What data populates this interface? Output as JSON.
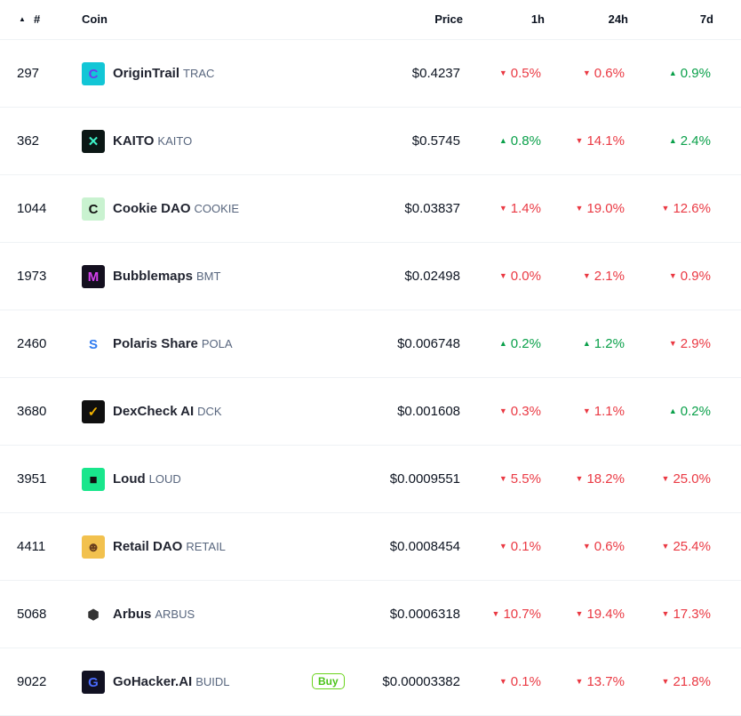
{
  "header": {
    "sort_icon": "▲",
    "rank": "#",
    "coin": "Coin",
    "price": "Price",
    "h1": "1h",
    "h24": "24h",
    "d7": "7d"
  },
  "colors": {
    "up": "#0aa04a",
    "down": "#ea3943",
    "buy": "#4cc31a"
  },
  "buy_label": "Buy",
  "coins": [
    {
      "rank": "297",
      "name": "OriginTrail",
      "symbol": "TRAC",
      "price": "$0.4237",
      "h1": {
        "dir": "down",
        "v": "0.5%"
      },
      "h24": {
        "dir": "down",
        "v": "0.6%"
      },
      "d7": {
        "dir": "up",
        "v": "0.9%"
      },
      "icon": "origintrail-logo",
      "bg": "#12c6d6",
      "fg": "#6a3df0",
      "glyph": "C"
    },
    {
      "rank": "362",
      "name": "KAITO",
      "symbol": "KAITO",
      "price": "$0.5745",
      "h1": {
        "dir": "up",
        "v": "0.8%"
      },
      "h24": {
        "dir": "down",
        "v": "14.1%"
      },
      "d7": {
        "dir": "up",
        "v": "2.4%"
      },
      "icon": "kaito-logo",
      "bg": "#0b1715",
      "fg": "#3ef2c8",
      "glyph": "✕"
    },
    {
      "rank": "1044",
      "name": "Cookie DAO",
      "symbol": "COOKIE",
      "price": "$0.03837",
      "h1": {
        "dir": "down",
        "v": "1.4%"
      },
      "h24": {
        "dir": "down",
        "v": "19.0%"
      },
      "d7": {
        "dir": "down",
        "v": "12.6%"
      },
      "icon": "cookie-dao-logo",
      "bg": "#c9f2d0",
      "fg": "#111",
      "glyph": "C"
    },
    {
      "rank": "1973",
      "name": "Bubblemaps",
      "symbol": "BMT",
      "price": "$0.02498",
      "h1": {
        "dir": "down",
        "v": "0.0%"
      },
      "h24": {
        "dir": "down",
        "v": "2.1%"
      },
      "d7": {
        "dir": "down",
        "v": "0.9%"
      },
      "icon": "bubblemaps-logo",
      "bg": "#14101f",
      "fg": "#d640f0",
      "glyph": "M"
    },
    {
      "rank": "2460",
      "name": "Polaris Share",
      "symbol": "POLA",
      "price": "$0.006748",
      "h1": {
        "dir": "up",
        "v": "0.2%"
      },
      "h24": {
        "dir": "up",
        "v": "1.2%"
      },
      "d7": {
        "dir": "down",
        "v": "2.9%"
      },
      "icon": "polaris-share-logo",
      "bg": "#ffffff",
      "fg": "#2f7bf0",
      "glyph": "S"
    },
    {
      "rank": "3680",
      "name": "DexCheck AI",
      "symbol": "DCK",
      "price": "$0.001608",
      "h1": {
        "dir": "down",
        "v": "0.3%"
      },
      "h24": {
        "dir": "down",
        "v": "1.1%"
      },
      "d7": {
        "dir": "up",
        "v": "0.2%"
      },
      "icon": "dexcheck-logo",
      "bg": "#0f0f0f",
      "fg": "#f4b400",
      "glyph": "✓"
    },
    {
      "rank": "3951",
      "name": "Loud",
      "symbol": "LOUD",
      "price": "$0.0009551",
      "h1": {
        "dir": "down",
        "v": "5.5%"
      },
      "h24": {
        "dir": "down",
        "v": "18.2%"
      },
      "d7": {
        "dir": "down",
        "v": "25.0%"
      },
      "icon": "loud-logo",
      "bg": "#19e68c",
      "fg": "#111",
      "glyph": "■"
    },
    {
      "rank": "4411",
      "name": "Retail DAO",
      "symbol": "RETAIL",
      "price": "$0.0008454",
      "h1": {
        "dir": "down",
        "v": "0.1%"
      },
      "h24": {
        "dir": "down",
        "v": "0.6%"
      },
      "d7": {
        "dir": "down",
        "v": "25.4%"
      },
      "icon": "retail-dao-logo",
      "bg": "#f2c14e",
      "fg": "#6b3f1d",
      "glyph": "☻"
    },
    {
      "rank": "5068",
      "name": "Arbus",
      "symbol": "ARBUS",
      "price": "$0.0006318",
      "h1": {
        "dir": "down",
        "v": "10.7%"
      },
      "h24": {
        "dir": "down",
        "v": "19.4%"
      },
      "d7": {
        "dir": "down",
        "v": "17.3%"
      },
      "icon": "arbus-logo",
      "bg": "#ffffff",
      "fg": "#333",
      "glyph": "⬢"
    },
    {
      "rank": "9022",
      "name": "GoHacker.AI",
      "symbol": "BUIDL",
      "price": "$0.00003382",
      "buy": true,
      "h1": {
        "dir": "down",
        "v": "0.1%"
      },
      "h24": {
        "dir": "down",
        "v": "13.7%"
      },
      "d7": {
        "dir": "down",
        "v": "21.8%"
      },
      "icon": "gohacker-logo",
      "bg": "#111122",
      "fg": "#4a6cff",
      "glyph": "G"
    }
  ]
}
